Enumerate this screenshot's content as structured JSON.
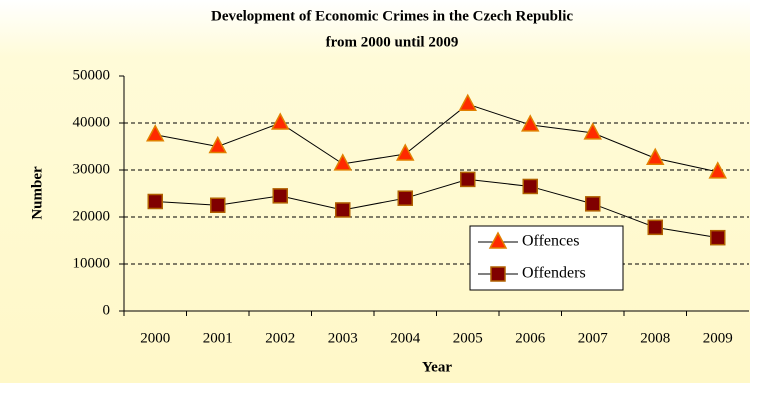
{
  "chart_data": {
    "type": "line",
    "title": [
      "Development of Economic Crimes in the Czech Republic",
      "from 2000 until 2009"
    ],
    "x_label": "Year",
    "y_label": "Number",
    "categories": [
      "2000",
      "2001",
      "2002",
      "2003",
      "2004",
      "2005",
      "2006",
      "2007",
      "2008",
      "2009"
    ],
    "series": [
      {
        "name": "Offences",
        "color": "#ff2a00",
        "marker": "triangle",
        "values": [
          37500,
          35000,
          40000,
          31300,
          33400,
          44000,
          39600,
          37900,
          32500,
          29600
        ]
      },
      {
        "name": "Offenders",
        "color": "#800000",
        "marker": "square",
        "values": [
          23300,
          22500,
          24500,
          21500,
          24000,
          28000,
          26500,
          22800,
          17800,
          15600
        ]
      }
    ],
    "ylim": [
      0,
      50000
    ],
    "yticks": [
      0,
      10000,
      20000,
      30000,
      40000,
      50000
    ],
    "grid": true,
    "legend": "lower right"
  }
}
